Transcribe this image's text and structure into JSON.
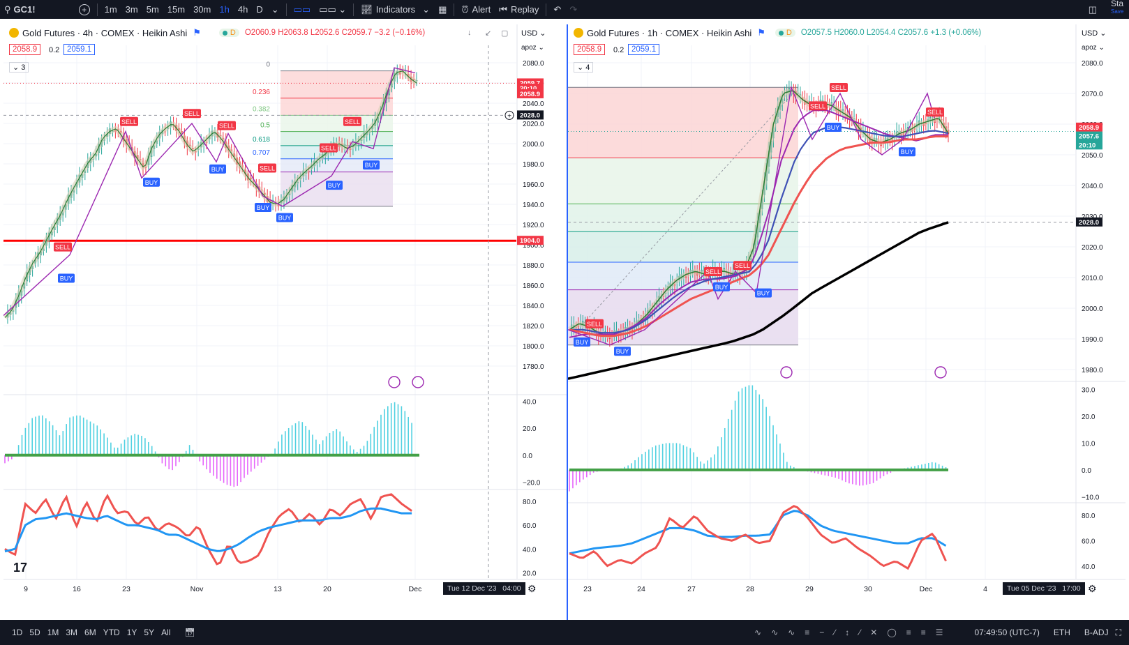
{
  "toolbar": {
    "symbol": "GC1!",
    "intervals": [
      "1m",
      "3m",
      "5m",
      "15m",
      "30m",
      "1h",
      "4h",
      "D"
    ],
    "active_interval": "1h",
    "indicators_label": "Indicators",
    "alert_label": "Alert",
    "replay_label": "Replay",
    "right_text": "Sta",
    "right_subtext": "Save"
  },
  "bottom": {
    "ranges": [
      "1D",
      "5D",
      "1M",
      "3M",
      "6M",
      "YTD",
      "1Y",
      "5Y",
      "All"
    ],
    "time": "07:49:50 (UTC-7)",
    "session": "ETH",
    "adj": "B-ADJ"
  },
  "colors": {
    "up": "#26a69a",
    "down": "#f23645",
    "accent": "#2962ff",
    "purple": "#9c27b0"
  },
  "left": {
    "title": "Gold Futures · 4h · COMEX · Heikin Ashi",
    "ohlc": {
      "o": "O2060.9",
      "h": "H2063.8",
      "l": "L2052.6",
      "c": "C2059.7",
      "chg": "−3.2 (−0.16%)"
    },
    "bid": "2058.9",
    "spread": "0.2",
    "ask": "2059.1",
    "indicators_count": "3",
    "currency": "USD",
    "scale_mode": "apoz",
    "price_last": "2059.7",
    "price_timer": "20:10",
    "price_bid": "2058.9",
    "crosshair_price": "2028.0",
    "hline_label": "1904.0",
    "fib_labels": [
      "0",
      "0.236",
      "0.382",
      "0.5",
      "0.618",
      "0.707"
    ],
    "signals_sell": [
      "SELL",
      "SELL",
      "SELL",
      "SELL",
      "SELL",
      "SELL",
      "SELL"
    ],
    "signals_buy": [
      "BUY",
      "BUY",
      "BUY",
      "BUY",
      "BUY",
      "BUY",
      "BUY"
    ],
    "date_label": "Tue 12 Dec '23",
    "time_label": "04:00",
    "x_ticks": [
      "9",
      "16",
      "23",
      "Nov",
      "13",
      "20",
      "Dec"
    ]
  },
  "right": {
    "title": "Gold Futures · 1h · COMEX · Heikin Ashi",
    "ohlc": {
      "o": "O2057.5",
      "h": "H2060.0",
      "l": "L2054.4",
      "c": "C2057.6",
      "chg": "+1.3 (+0.06%)"
    },
    "bid": "2058.9",
    "spread": "0.2",
    "ask": "2059.1",
    "indicators_count": "4",
    "currency": "USD",
    "scale_mode": "apoz",
    "price_bid": "2058.9",
    "price_last": "2057.6",
    "price_timer": "20:10",
    "crosshair_price": "2028.0",
    "signals_sell": [
      "SELL",
      "SELL",
      "SELL",
      "SELL",
      "SELL",
      "SELL"
    ],
    "signals_buy": [
      "BUY",
      "BUY",
      "BUY",
      "BUY",
      "BUY",
      "BUY"
    ],
    "date_label": "Tue 05 Dec '23",
    "time_label": "17:00",
    "x_ticks": [
      "23",
      "24",
      "27",
      "28",
      "29",
      "30",
      "Dec",
      "4"
    ]
  },
  "chart_data": [
    {
      "type": "line",
      "title": "Gold Futures · 4h · COMEX · Heikin Ashi",
      "price_axis": [
        "2080.0",
        "2060.0",
        "2040.0",
        "2020.0",
        "2000.0",
        "1980.0",
        "1960.0",
        "1940.0",
        "1920.0",
        "1900.0",
        "1880.0",
        "1860.0",
        "1840.0",
        "1820.0",
        "1800.0",
        "1780.0"
      ],
      "osc_axis": [
        "40.0",
        "20.0",
        "0.0",
        "−20.0"
      ],
      "rsi_axis": [
        "80.0",
        "60.0",
        "40.0",
        "20.0"
      ],
      "x_ticks": [
        "9",
        "16",
        "23",
        "Nov",
        "13",
        "20",
        "Dec"
      ],
      "series": [
        {
          "name": "price",
          "values": [
            1828,
            1835,
            1850,
            1868,
            1882,
            1892,
            1905,
            1918,
            1930,
            1945,
            1958,
            1970,
            1982,
            1990,
            2005,
            2012,
            2015,
            2005,
            1995,
            1985,
            1975,
            1995,
            2008,
            2015,
            2020,
            2012,
            2000,
            1992,
            1998,
            2005,
            2012,
            2005,
            1995,
            1985,
            1975,
            1965,
            1958,
            1950,
            1942,
            1940,
            1945,
            1955,
            1965,
            1972,
            1978,
            1985,
            1990,
            1998,
            2000,
            1995,
            1998,
            2005,
            2012,
            2020,
            2035,
            2055,
            2070,
            2072,
            2065,
            2060
          ]
        }
      ]
    },
    {
      "type": "line",
      "title": "Gold Futures · 1h · COMEX · Heikin Ashi",
      "price_axis": [
        "2080.0",
        "2070.0",
        "2060.0",
        "2050.0",
        "2040.0",
        "2030.0",
        "2020.0",
        "2010.0",
        "2000.0",
        "1990.0",
        "1980.0"
      ],
      "osc_axis": [
        "30.0",
        "20.0",
        "10.0",
        "0.0",
        "−10.0"
      ],
      "rsi_axis": [
        "80.0",
        "60.0",
        "40.0"
      ],
      "x_ticks": [
        "23",
        "24",
        "27",
        "28",
        "29",
        "30",
        "Dec",
        "4"
      ],
      "series": [
        {
          "name": "price",
          "values": [
            1993,
            1995,
            1994,
            1992,
            1991,
            1992,
            1993,
            1995,
            1998,
            2002,
            2006,
            2009,
            2011,
            2012,
            2011,
            2012,
            2012,
            2011,
            2012,
            2020,
            2040,
            2060,
            2070,
            2071,
            2068,
            2066,
            2067,
            2066,
            2064,
            2062,
            2058,
            2055,
            2054,
            2055,
            2057,
            2058,
            2060,
            2061,
            2062,
            2057
          ]
        }
      ]
    }
  ]
}
